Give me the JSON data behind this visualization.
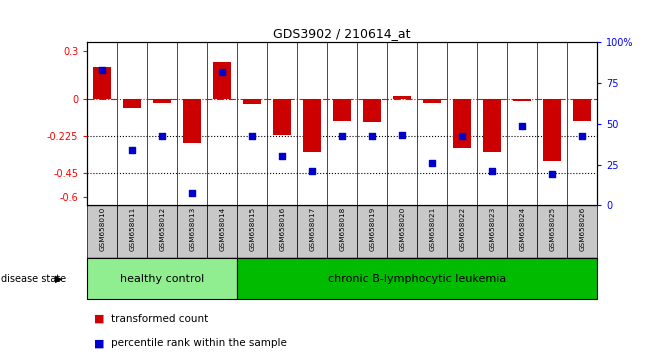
{
  "title": "GDS3902 / 210614_at",
  "samples": [
    "GSM658010",
    "GSM658011",
    "GSM658012",
    "GSM658013",
    "GSM658014",
    "GSM658015",
    "GSM658016",
    "GSM658017",
    "GSM658018",
    "GSM658019",
    "GSM658020",
    "GSM658021",
    "GSM658022",
    "GSM658023",
    "GSM658024",
    "GSM658025",
    "GSM658026"
  ],
  "red_values": [
    0.2,
    -0.05,
    -0.02,
    -0.27,
    0.23,
    -0.03,
    -0.22,
    -0.32,
    -0.13,
    -0.14,
    0.02,
    -0.02,
    -0.3,
    -0.32,
    -0.01,
    -0.38,
    -0.13
  ],
  "blue_values": [
    0.18,
    -0.31,
    -0.225,
    -0.575,
    0.17,
    -0.225,
    -0.345,
    -0.44,
    -0.225,
    -0.225,
    -0.22,
    -0.39,
    -0.225,
    -0.44,
    -0.16,
    -0.46,
    -0.225
  ],
  "healthy_count": 5,
  "ylim_left": [
    -0.65,
    0.35
  ],
  "ylim_right": [
    0,
    100
  ],
  "yticks_left": [
    0.3,
    0.0,
    -0.225,
    -0.45,
    -0.6
  ],
  "yticks_right": [
    100,
    75,
    50,
    25,
    0
  ],
  "hlines": [
    0.0,
    -0.225,
    -0.45
  ],
  "hline_styles": [
    "dashdot",
    "dotted",
    "dotted"
  ],
  "hline_colors": [
    "red",
    "black",
    "black"
  ],
  "bar_color": "#CC0000",
  "dot_color": "#0000CC",
  "healthy_bg": "#90EE90",
  "leukemia_bg": "#00BB00",
  "label_bg": "#C8C8C8",
  "disease_state_label": "disease state",
  "healthy_label": "healthy control",
  "leukemia_label": "chronic B-lymphocytic leukemia",
  "legend_red": "transformed count",
  "legend_blue": "percentile rank within the sample",
  "bar_width": 0.6
}
